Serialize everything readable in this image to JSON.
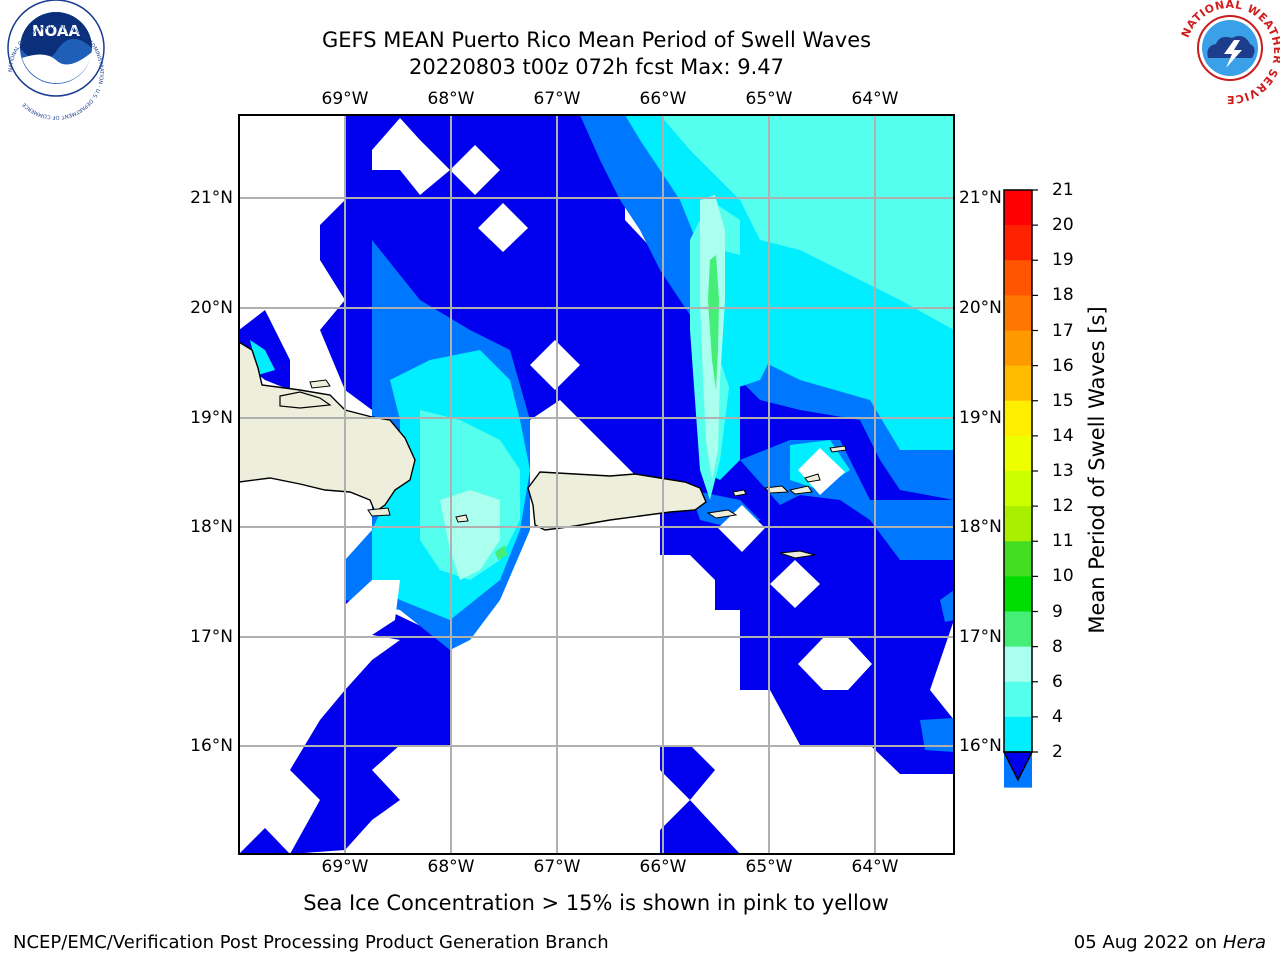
{
  "title_line1": "GEFS MEAN Puerto Rico Mean Period of Swell Waves",
  "title_line2": "20220803 t00z 072h fcst   Max: 9.47",
  "lon_ticks": [
    "69°W",
    "68°W",
    "67°W",
    "66°W",
    "65°W",
    "64°W"
  ],
  "lat_ticks": [
    "21°N",
    "20°N",
    "19°N",
    "18°N",
    "17°N",
    "16°N"
  ],
  "colorbar": {
    "title": "Mean Period of Swell Waves [s]",
    "labels": [
      "21",
      "20",
      "19",
      "18",
      "17",
      "16",
      "15",
      "14",
      "13",
      "12",
      "11",
      "10",
      "9",
      "8",
      "6",
      "4",
      "2"
    ],
    "colors": [
      "#ff0000",
      "#ff2200",
      "#ff5500",
      "#ff7700",
      "#ff9900",
      "#ffbb00",
      "#ffee00",
      "#eeff00",
      "#ccff00",
      "#aaee00",
      "#44dd22",
      "#00dd00",
      "#44ee77",
      "#aaffee",
      "#55ffee",
      "#00eeff",
      "#0077ff"
    ],
    "under_color": "#0000ee"
  },
  "caption": "Sea Ice Concentration > 15% is shown in pink to yellow",
  "footer_left": "NCEP/EMC/Verification Post Processing Product Generation Branch",
  "footer_date": "05 Aug 2022 on",
  "footer_machine": "Hera",
  "logos": {
    "noaa": "NOAA",
    "nws": "NATIONAL WEATHER SERVICE",
    "noaa_ring": "NATIONAL OCEANIC AND ATMOSPHERIC ADMINISTRATION · U.S. DEPARTMENT OF COMMERCE"
  }
}
